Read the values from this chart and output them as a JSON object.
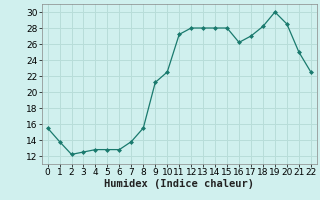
{
  "x": [
    0,
    1,
    2,
    3,
    4,
    5,
    6,
    7,
    8,
    9,
    10,
    11,
    12,
    13,
    14,
    15,
    16,
    17,
    18,
    19,
    20,
    21,
    22
  ],
  "y": [
    15.5,
    13.8,
    12.2,
    12.5,
    12.8,
    12.8,
    12.8,
    13.8,
    15.5,
    21.2,
    22.5,
    27.2,
    28.0,
    28.0,
    28.0,
    28.0,
    26.2,
    27.0,
    28.2,
    30.0,
    28.5,
    25.0,
    22.5
  ],
  "line_color": "#1a7a6e",
  "marker": "D",
  "marker_size": 2.0,
  "bg_color": "#d0f0ee",
  "grid_color": "#b8ddd9",
  "xlabel": "Humidex (Indice chaleur)",
  "ylim": [
    11,
    31
  ],
  "xlim": [
    -0.5,
    22.5
  ],
  "yticks": [
    12,
    14,
    16,
    18,
    20,
    22,
    24,
    26,
    28,
    30
  ],
  "xticks": [
    0,
    1,
    2,
    3,
    4,
    5,
    6,
    7,
    8,
    9,
    10,
    11,
    12,
    13,
    14,
    15,
    16,
    17,
    18,
    19,
    20,
    21,
    22
  ],
  "xlabel_fontsize": 7.5,
  "tick_fontsize": 6.5,
  "linewidth": 0.9
}
